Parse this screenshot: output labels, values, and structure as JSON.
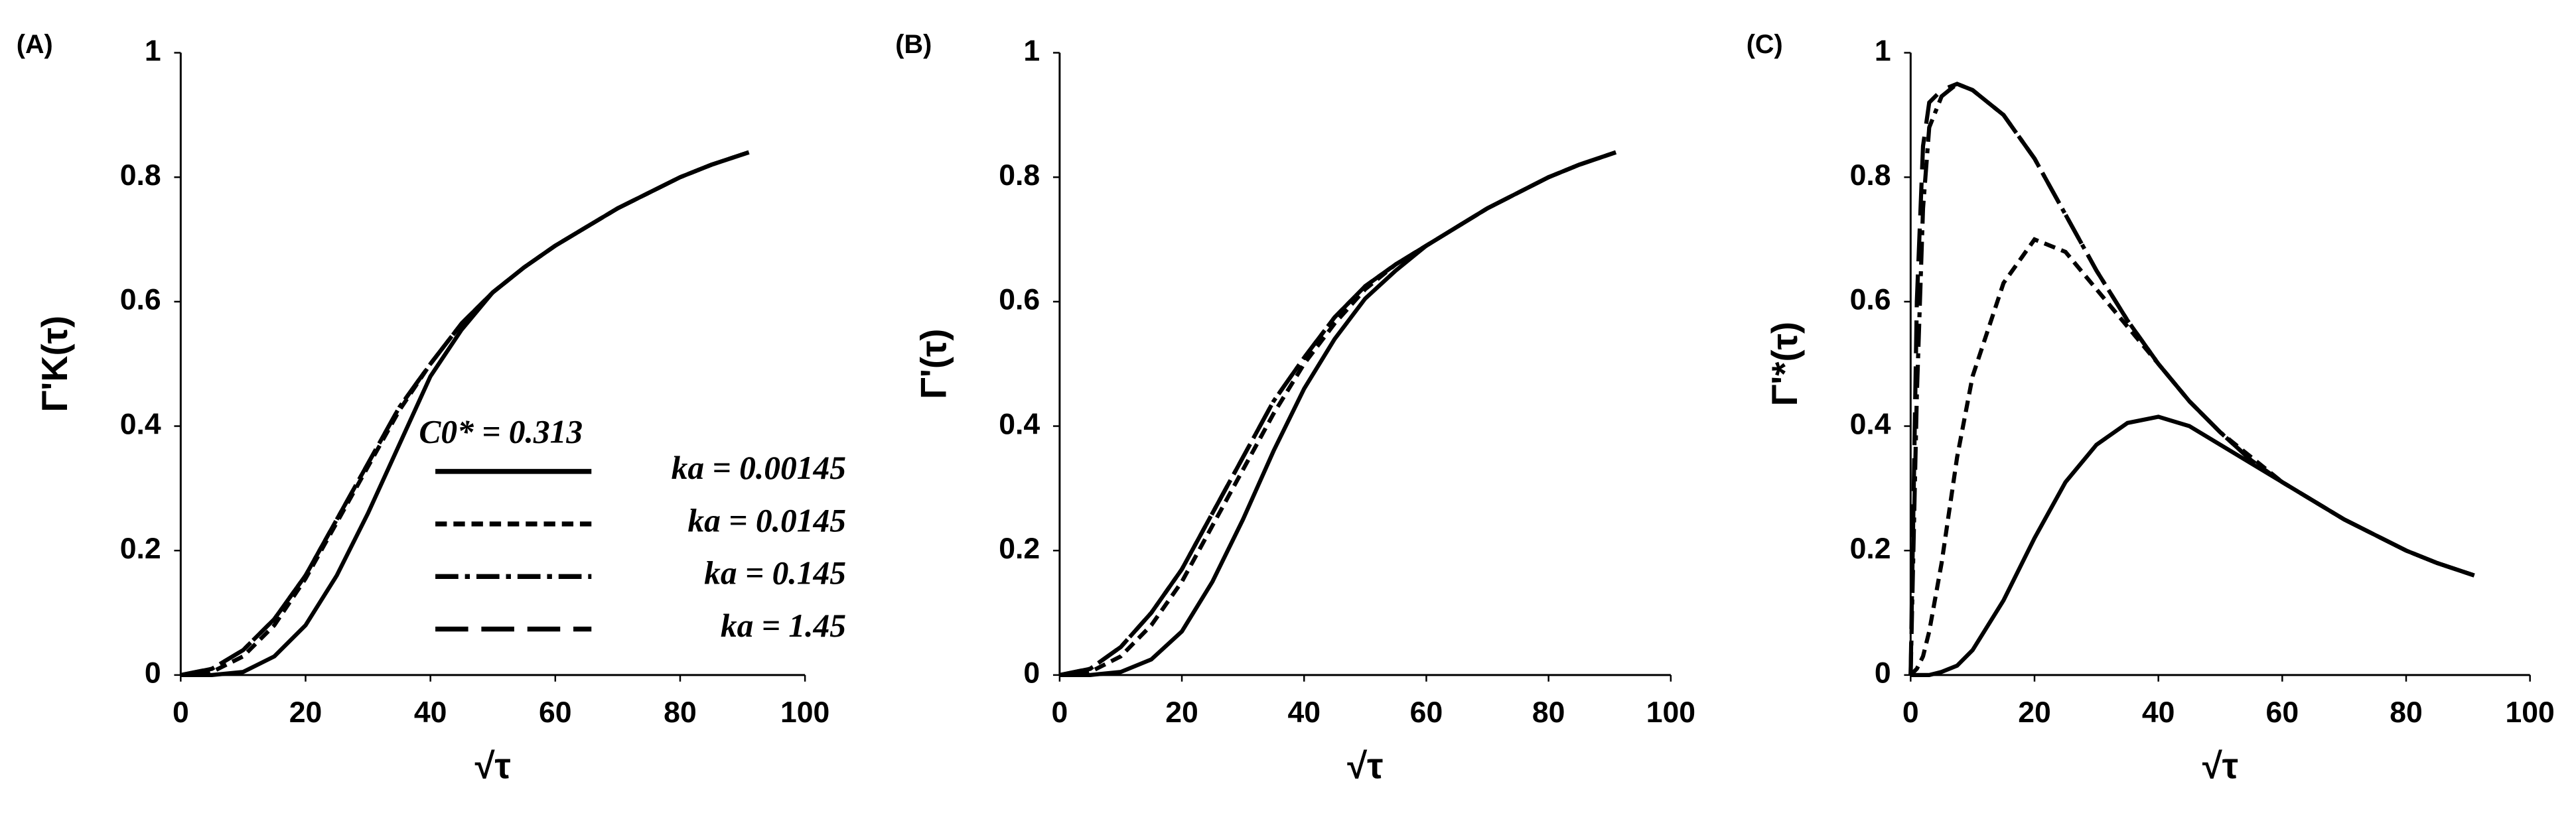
{
  "chart_data": [
    {
      "type": "line",
      "panel_label": "(A)",
      "ylabel": "Γ'K(τ)",
      "xlabel": "√τ",
      "annotation": "C0* = 0.313",
      "legend": "lower right",
      "xlim": [
        0,
        100
      ],
      "ylim": [
        0,
        1
      ],
      "xticks": [
        0,
        20,
        40,
        60,
        80,
        100
      ],
      "yticks": [
        0,
        0.2,
        0.4,
        0.6,
        0.8,
        1
      ],
      "x": [
        0,
        5,
        10,
        15,
        20,
        25,
        30,
        35,
        40,
        45,
        50,
        55,
        60,
        65,
        70,
        75,
        80,
        85,
        91
      ],
      "series": [
        {
          "name": "ka = 0.00145",
          "color": "#000000",
          "dash": "solid",
          "values": [
            0,
            0,
            0.005,
            0.03,
            0.08,
            0.16,
            0.26,
            0.37,
            0.48,
            0.555,
            0.615,
            0.655,
            0.69,
            0.72,
            0.75,
            0.775,
            0.8,
            0.82,
            0.84
          ]
        },
        {
          "name": "ka = 0.0145",
          "color": "#000000",
          "dash": "dashed",
          "values": [
            0,
            0.005,
            0.03,
            0.08,
            0.155,
            0.245,
            0.335,
            0.425,
            0.5,
            0.565,
            0.615,
            0.655,
            0.69,
            0.72,
            0.75,
            0.775,
            0.8,
            0.82,
            0.84
          ]
        },
        {
          "name": "ka = 0.145",
          "color": "#000000",
          "dash": "dashdot",
          "values": [
            0,
            0.01,
            0.04,
            0.09,
            0.16,
            0.25,
            0.34,
            0.43,
            0.5,
            0.565,
            0.615,
            0.655,
            0.69,
            0.72,
            0.75,
            0.775,
            0.8,
            0.82,
            0.84
          ]
        },
        {
          "name": "ka = 1.45",
          "color": "#000000",
          "dash": "longdash",
          "values": [
            0,
            0.01,
            0.04,
            0.09,
            0.16,
            0.25,
            0.34,
            0.43,
            0.5,
            0.565,
            0.615,
            0.655,
            0.69,
            0.72,
            0.75,
            0.775,
            0.8,
            0.82,
            0.84
          ]
        }
      ]
    },
    {
      "type": "line",
      "panel_label": "(B)",
      "ylabel": "Γ'(τ)",
      "xlabel": "√τ",
      "xlim": [
        0,
        100
      ],
      "ylim": [
        0,
        1
      ],
      "xticks": [
        0,
        20,
        40,
        60,
        80,
        100
      ],
      "yticks": [
        0,
        0.2,
        0.4,
        0.6,
        0.8,
        1
      ],
      "x": [
        0,
        5,
        10,
        15,
        20,
        25,
        30,
        35,
        40,
        45,
        50,
        55,
        60,
        65,
        70,
        75,
        80,
        85,
        91
      ],
      "series": [
        {
          "color": "#000000",
          "dash": "solid",
          "values": [
            0,
            0,
            0.005,
            0.025,
            0.07,
            0.15,
            0.25,
            0.36,
            0.46,
            0.54,
            0.605,
            0.65,
            0.69,
            0.72,
            0.75,
            0.775,
            0.8,
            0.82,
            0.84
          ]
        },
        {
          "color": "#000000",
          "dash": "dashed",
          "values": [
            0,
            0.005,
            0.03,
            0.08,
            0.15,
            0.24,
            0.33,
            0.42,
            0.5,
            0.565,
            0.62,
            0.66,
            0.69,
            0.72,
            0.75,
            0.775,
            0.8,
            0.82,
            0.84
          ]
        },
        {
          "color": "#000000",
          "dash": "dashdot",
          "values": [
            0,
            0.01,
            0.045,
            0.1,
            0.17,
            0.26,
            0.35,
            0.44,
            0.51,
            0.575,
            0.625,
            0.66,
            0.69,
            0.72,
            0.75,
            0.775,
            0.8,
            0.82,
            0.84
          ]
        },
        {
          "color": "#000000",
          "dash": "longdash",
          "values": [
            0,
            0.01,
            0.045,
            0.1,
            0.17,
            0.26,
            0.35,
            0.44,
            0.51,
            0.575,
            0.625,
            0.66,
            0.69,
            0.72,
            0.75,
            0.775,
            0.8,
            0.82,
            0.84
          ]
        }
      ]
    },
    {
      "type": "line",
      "panel_label": "(C)",
      "ylabel": "Γ'*(τ)",
      "xlabel": "√τ",
      "xlim": [
        0,
        100
      ],
      "ylim": [
        0,
        1
      ],
      "xticks": [
        0,
        20,
        40,
        60,
        80,
        100
      ],
      "yticks": [
        0,
        0.2,
        0.4,
        0.6,
        0.8,
        1
      ],
      "x": [
        0,
        1,
        2,
        3,
        5,
        7.5,
        10,
        15,
        20,
        25,
        30,
        35,
        40,
        45,
        50,
        55,
        60,
        65,
        70,
        75,
        80,
        85,
        91
      ],
      "series": [
        {
          "color": "#000000",
          "dash": "solid",
          "values": [
            0,
            0,
            0,
            0,
            0.005,
            0.015,
            0.04,
            0.12,
            0.22,
            0.31,
            0.37,
            0.405,
            0.415,
            0.4,
            0.37,
            0.34,
            0.31,
            0.28,
            0.25,
            0.225,
            0.2,
            0.18,
            0.16
          ]
        },
        {
          "color": "#000000",
          "dash": "dashed",
          "values": [
            0,
            0.01,
            0.03,
            0.07,
            0.18,
            0.35,
            0.48,
            0.63,
            0.7,
            0.68,
            0.62,
            0.56,
            0.5,
            0.44,
            0.39,
            0.35,
            0.31,
            0.28,
            0.25,
            0.225,
            0.2,
            0.18,
            0.16
          ]
        },
        {
          "color": "#000000",
          "dash": "dashdot",
          "values": [
            0,
            0.45,
            0.75,
            0.88,
            0.93,
            0.95,
            0.94,
            0.9,
            0.83,
            0.74,
            0.65,
            0.57,
            0.5,
            0.44,
            0.39,
            0.345,
            0.31,
            0.28,
            0.25,
            0.225,
            0.2,
            0.18,
            0.16
          ]
        },
        {
          "color": "#000000",
          "dash": "longdash",
          "values": [
            0,
            0.6,
            0.85,
            0.92,
            0.94,
            0.95,
            0.94,
            0.9,
            0.83,
            0.74,
            0.65,
            0.57,
            0.5,
            0.44,
            0.39,
            0.345,
            0.31,
            0.28,
            0.25,
            0.225,
            0.2,
            0.18,
            0.16
          ]
        }
      ]
    }
  ]
}
